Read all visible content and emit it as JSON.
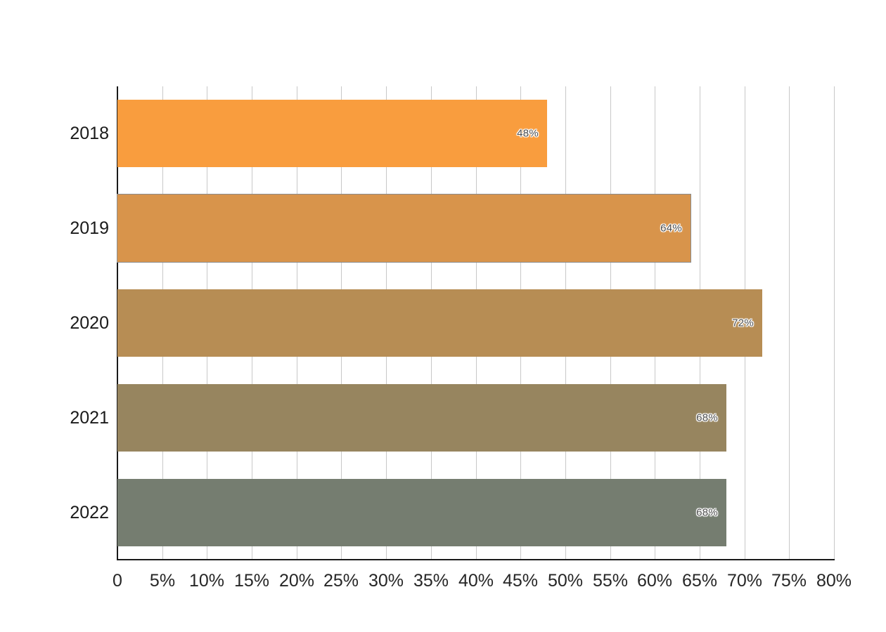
{
  "chart_data": {
    "type": "bar",
    "orientation": "horizontal",
    "title": "",
    "xlabel": "",
    "ylabel": "",
    "categories": [
      "2018",
      "2019",
      "2020",
      "2021",
      "2022"
    ],
    "values": [
      48,
      64,
      72,
      68,
      68
    ],
    "value_labels": [
      "48%",
      "64%",
      "72%",
      "68%",
      "68%"
    ],
    "bar_colors": [
      "#F99D3E",
      "#D8944B",
      "#B78D54",
      "#97855F",
      "#757D70"
    ],
    "bar_border_colors": [
      "",
      "#8C8C8C",
      "",
      "",
      ""
    ],
    "xlim": [
      0,
      80
    ],
    "x_ticks": [
      0,
      5,
      10,
      15,
      20,
      25,
      30,
      35,
      40,
      45,
      50,
      55,
      60,
      65,
      70,
      75,
      80
    ],
    "x_tick_labels": [
      "0",
      "5%",
      "10%",
      "15%",
      "20%",
      "25%",
      "30%",
      "35%",
      "40%",
      "45%",
      "50%",
      "55%",
      "60%",
      "65%",
      "70%",
      "75%",
      "80%"
    ],
    "grid": "vertical-gridlines-behind-bars",
    "legend": "none"
  },
  "colors": {
    "background": "#FFFFFF",
    "gridline": "#C8C8C8",
    "axis_line": "#1A1A1A",
    "tick_label": "#262626",
    "category_label": "#1A1A1A",
    "bar_label": "#4D4D4D",
    "bar_label_halo": "#FFFFFF"
  }
}
